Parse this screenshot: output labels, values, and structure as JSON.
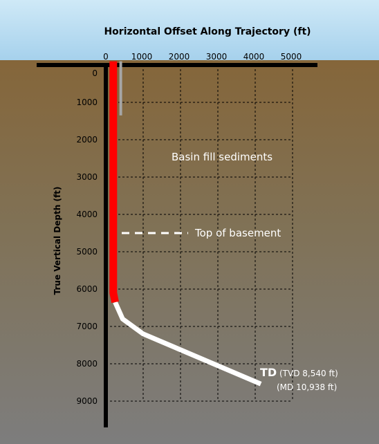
{
  "chart_data": {
    "type": "line",
    "title": "Horizontal Offset Along Trajectory (ft)",
    "xlabel": "",
    "ylabel": "True Vertical Depth (ft)",
    "x_ticks": [
      "0",
      "1000",
      "2000",
      "3000",
      "4000",
      "5000"
    ],
    "y_ticks": [
      "0",
      "1000",
      "2000",
      "3000",
      "4000",
      "5000",
      "6000",
      "7000",
      "8000",
      "9000"
    ],
    "xlim": [
      0,
      5000
    ],
    "ylim": [
      0,
      9000
    ],
    "grid": true,
    "series": [
      {
        "color": "#ff0000",
        "x": [
          200,
          200,
          250
        ],
        "y": [
          -100,
          6100,
          6350
        ]
      },
      {
        "color": "#ffffff",
        "x": [
          250,
          450,
          1000,
          4150
        ],
        "y": [
          6350,
          6800,
          7200,
          8540
        ]
      },
      {
        "color": "#a6a6a6",
        "x": [
          400,
          400
        ],
        "y": [
          -100,
          1350
        ]
      }
    ],
    "annotations": {
      "sediments": "Basin fill sediments",
      "basement": "Top of basement",
      "basement_depth": 4500,
      "td_label": "TD",
      "td_tvd": "(TVD 8,540 ft)",
      "td_md": "(MD 10,938 ft)"
    },
    "colors": {
      "sky_top": "#c9e6f5",
      "sky_bottom": "#a8d2ec",
      "ground_top": "#85663a",
      "ground_bottom": "#7e7e7e",
      "casing": "#ff0000",
      "trajectory": "#ffffff",
      "axis": "#000000"
    }
  }
}
